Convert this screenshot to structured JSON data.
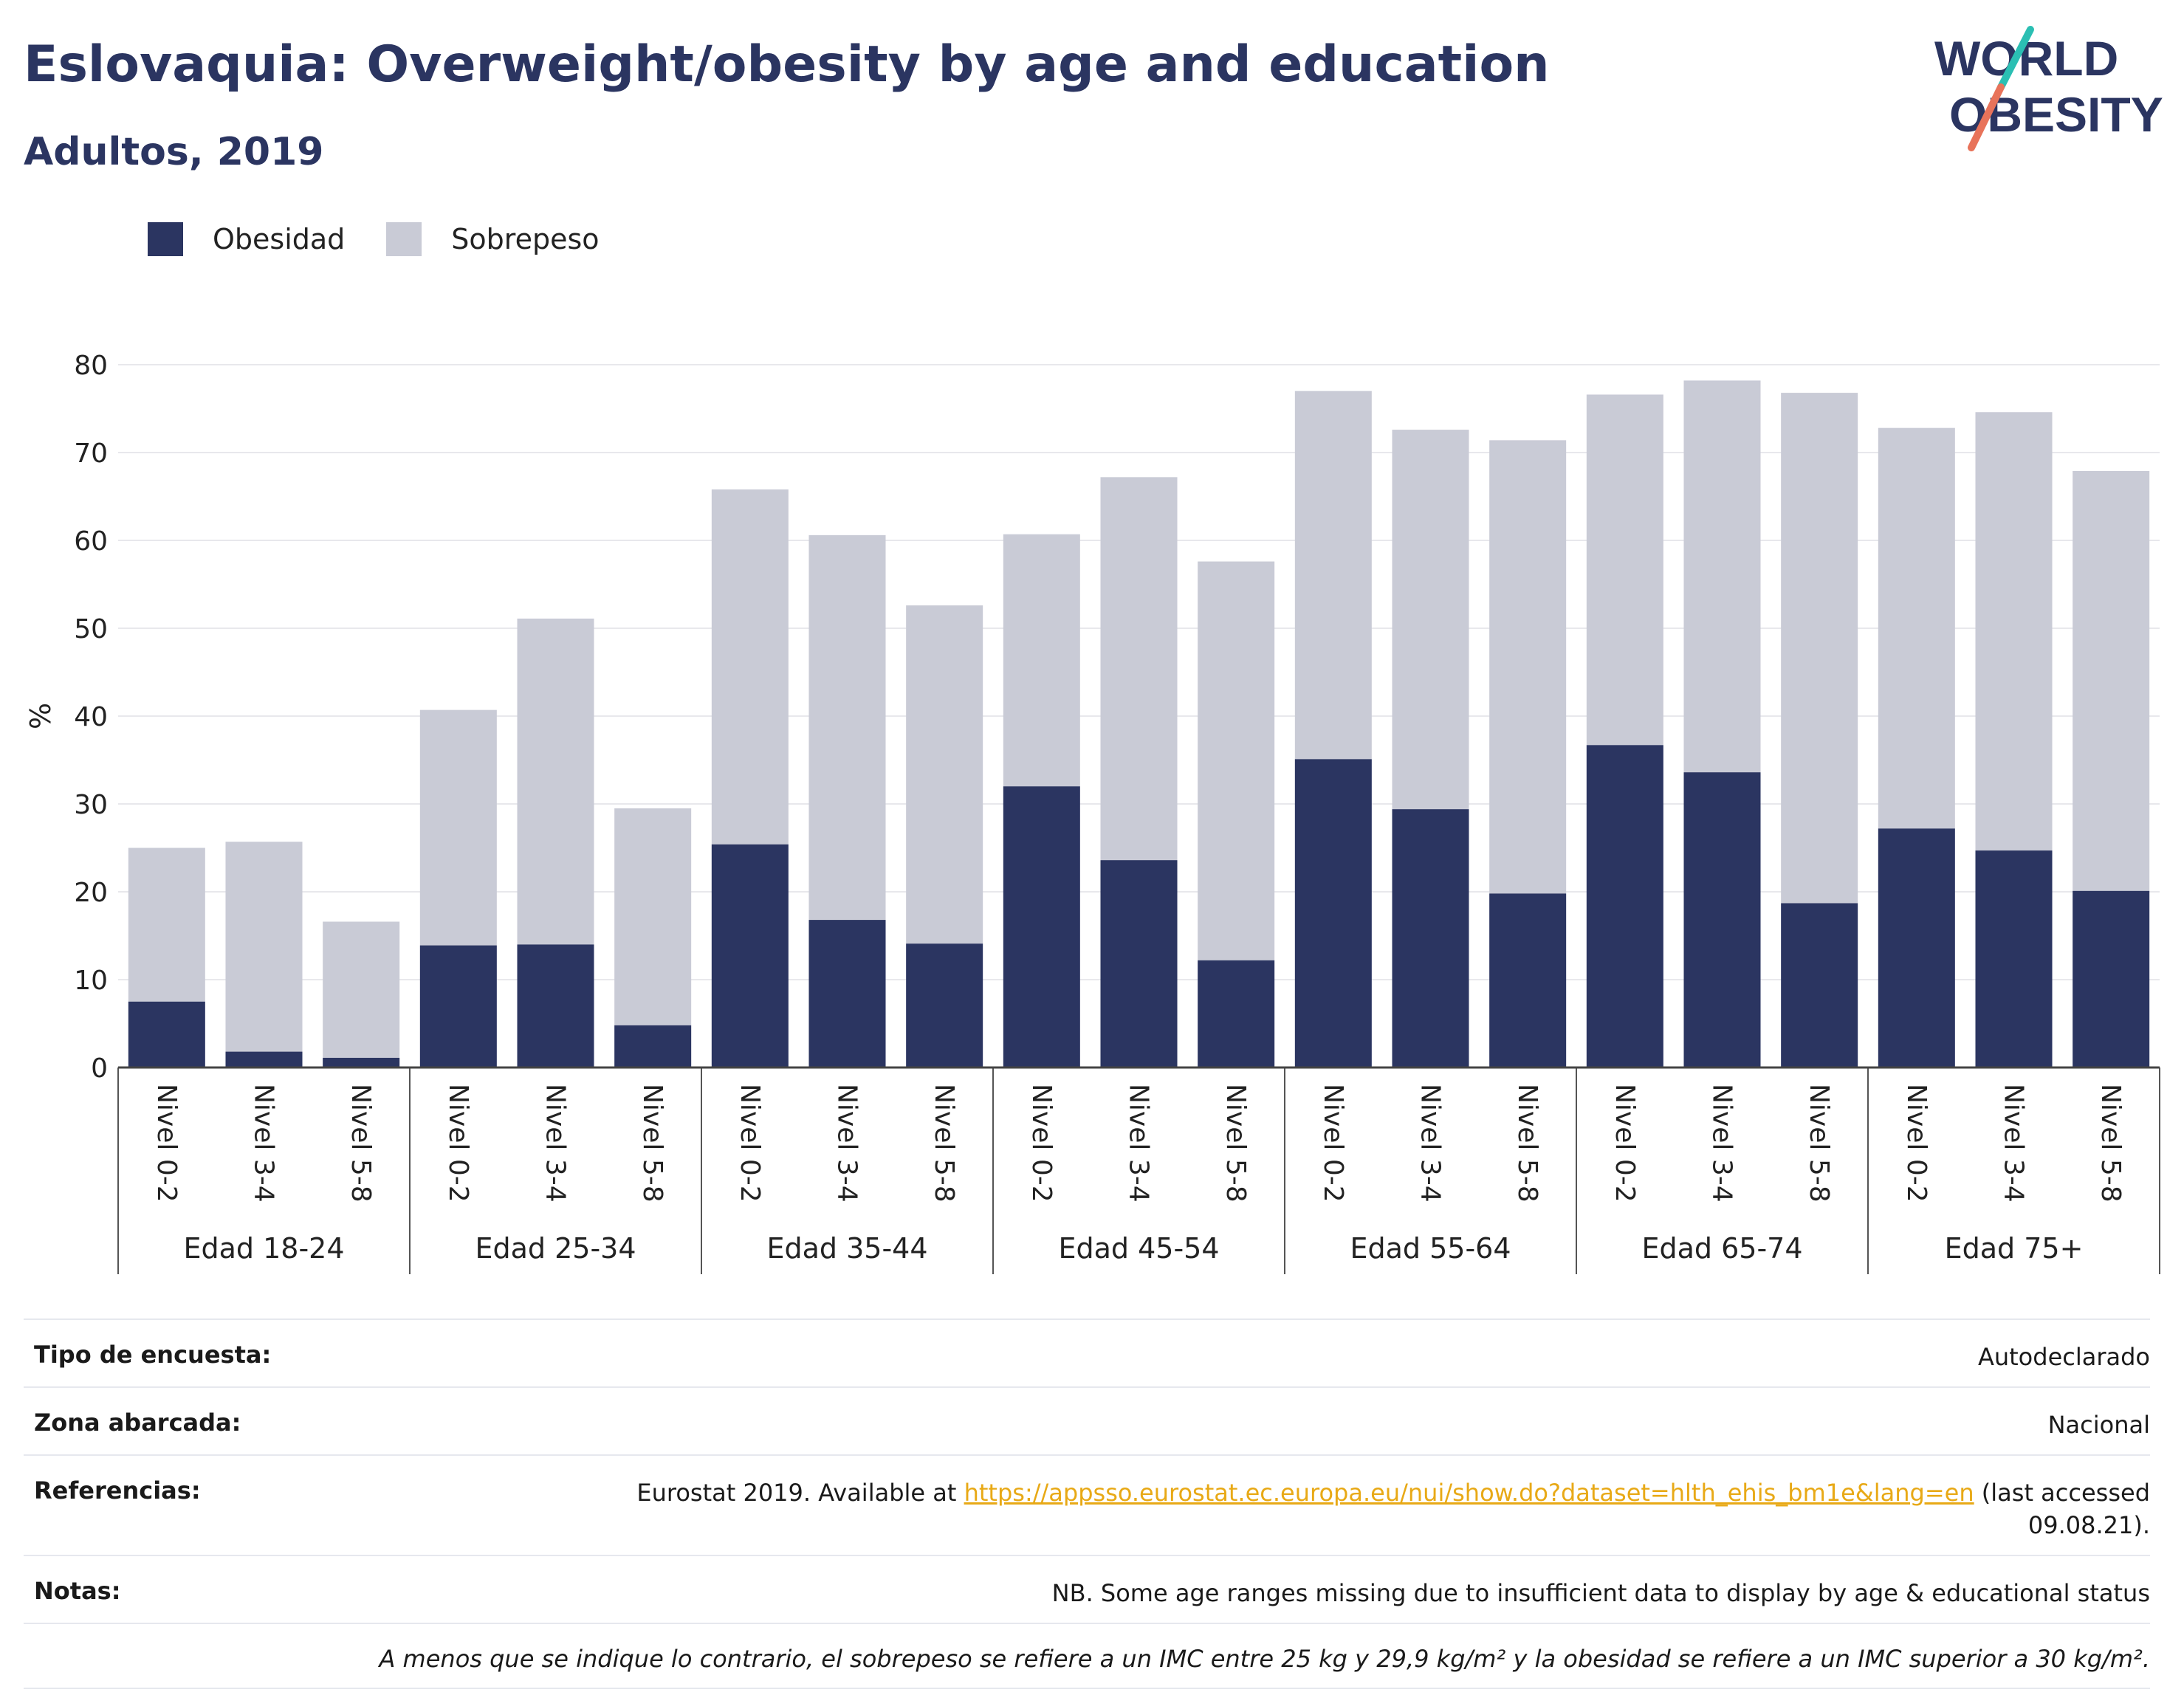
{
  "header": {
    "title": "Eslovaquia: Overweight/obesity by age and education",
    "subtitle": "Adultos, 2019"
  },
  "logo": {
    "line1": "WORLD",
    "line2": "OBESITY"
  },
  "colors": {
    "obesity": "#2b3561",
    "overweight": "#c9cbd6",
    "accent_teal": "#2bbfb3",
    "accent_coral": "#e8735a",
    "link": "#e8a916"
  },
  "chart_data": {
    "type": "bar",
    "stacked": true,
    "ylabel": "%",
    "ylim": [
      0,
      80
    ],
    "yticks": [
      0,
      10,
      20,
      30,
      40,
      50,
      60,
      70,
      80
    ],
    "legend": [
      "Obesidad",
      "Sobrepeso"
    ],
    "legend_position": "top-left",
    "grid": true,
    "groups": [
      {
        "label": "Edad 18-24",
        "bars": [
          {
            "category": "Nivel 0-2",
            "obesity": 7.5,
            "total": 25.0
          },
          {
            "category": "Nivel 3-4",
            "obesity": 1.8,
            "total": 25.7
          },
          {
            "category": "Nivel 5-8",
            "obesity": 1.1,
            "total": 16.6
          }
        ]
      },
      {
        "label": "Edad 25-34",
        "bars": [
          {
            "category": "Nivel 0-2",
            "obesity": 13.9,
            "total": 40.7
          },
          {
            "category": "Nivel 3-4",
            "obesity": 14.0,
            "total": 51.1
          },
          {
            "category": "Nivel 5-8",
            "obesity": 4.8,
            "total": 29.5
          }
        ]
      },
      {
        "label": "Edad 35-44",
        "bars": [
          {
            "category": "Nivel 0-2",
            "obesity": 25.4,
            "total": 65.8
          },
          {
            "category": "Nivel 3-4",
            "obesity": 16.8,
            "total": 60.6
          },
          {
            "category": "Nivel 5-8",
            "obesity": 14.1,
            "total": 52.6
          }
        ]
      },
      {
        "label": "Edad 45-54",
        "bars": [
          {
            "category": "Nivel 0-2",
            "obesity": 32.0,
            "total": 60.7
          },
          {
            "category": "Nivel 3-4",
            "obesity": 23.6,
            "total": 67.2
          },
          {
            "category": "Nivel 5-8",
            "obesity": 12.2,
            "total": 57.6
          }
        ]
      },
      {
        "label": "Edad 55-64",
        "bars": [
          {
            "category": "Nivel 0-2",
            "obesity": 35.1,
            "total": 77.0
          },
          {
            "category": "Nivel 3-4",
            "obesity": 29.4,
            "total": 72.6
          },
          {
            "category": "Nivel 5-8",
            "obesity": 19.8,
            "total": 71.4
          }
        ]
      },
      {
        "label": "Edad 65-74",
        "bars": [
          {
            "category": "Nivel 0-2",
            "obesity": 36.7,
            "total": 76.6
          },
          {
            "category": "Nivel 3-4",
            "obesity": 33.6,
            "total": 78.2
          },
          {
            "category": "Nivel 5-8",
            "obesity": 18.7,
            "total": 76.8
          }
        ]
      },
      {
        "label": "Edad 75+",
        "bars": [
          {
            "category": "Nivel 0-2",
            "obesity": 27.2,
            "total": 72.8
          },
          {
            "category": "Nivel 3-4",
            "obesity": 24.7,
            "total": 74.6
          },
          {
            "category": "Nivel 5-8",
            "obesity": 20.1,
            "total": 67.9
          }
        ]
      }
    ]
  },
  "info": {
    "survey_label": "Tipo de encuesta:",
    "survey_value": "Autodeclarado",
    "area_label": "Zona abarcada:",
    "area_value": "Nacional",
    "refs_label": "Referencias:",
    "refs_before": "Eurostat 2019. Available at ",
    "refs_link": "https://appsso.eurostat.ec.europa.eu/nui/show.do?dataset=hlth_ehis_bm1e&lang=en",
    "refs_after": " (last accessed 09.08.21).",
    "notes_label": "Notas:",
    "notes_value": "NB. Some age ranges missing due to insufficient data to display by age & educational status",
    "footnote": "A menos que se indique lo contrario, el sobrepeso se refiere a un IMC entre 25 kg y 29,9 kg/m² y la obesidad se refiere a un IMC superior a 30 kg/m²."
  }
}
